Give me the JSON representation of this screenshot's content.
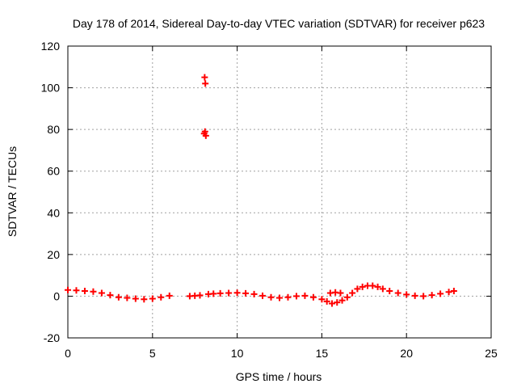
{
  "chart_data": {
    "type": "scatter",
    "title": "Day 178 of 2014, Sidereal Day-to-day VTEC variation (SDTVAR) for receiver p623",
    "xlabel": "GPS time / hours",
    "ylabel": "SDTVAR / TECUs",
    "xlim": [
      0,
      25
    ],
    "ylim": [
      -20,
      120
    ],
    "xticks": [
      0,
      5,
      10,
      15,
      20,
      25
    ],
    "xtick_labels": [
      "0",
      "5",
      "10",
      "15",
      "20",
      "25"
    ],
    "yticks": [
      -20,
      0,
      20,
      40,
      60,
      80,
      100,
      120
    ],
    "ytick_labels": [
      "-20",
      "0",
      "20",
      "40",
      "60",
      "80",
      "100",
      "120"
    ],
    "grid": true,
    "marker": "+",
    "color": "#ff0000",
    "series": [
      {
        "name": "SDTVAR",
        "x": [
          0,
          0.5,
          1.0,
          1.5,
          2.0,
          2.5,
          3.0,
          3.5,
          4.0,
          4.5,
          5.0,
          5.5,
          6.0,
          7.2,
          7.5,
          7.8,
          8.3,
          8.6,
          9.0,
          9.5,
          10.0,
          10.5,
          11.0,
          11.5,
          12.0,
          12.5,
          13.0,
          13.5,
          14.0,
          14.5,
          15.0,
          15.3,
          15.6,
          15.9,
          16.2,
          16.5,
          16.8,
          17.1,
          17.4,
          17.7,
          18.0,
          18.3,
          18.6,
          19.0,
          19.5,
          20.0,
          20.5,
          21.0,
          21.5,
          22.0,
          22.5,
          22.8,
          15.5,
          15.8,
          16.1,
          8.05,
          8.1,
          8.15,
          8.08,
          8.12
        ],
        "y": [
          3,
          2.8,
          2.5,
          2.2,
          1.5,
          0.5,
          -0.5,
          -0.8,
          -1.2,
          -1.5,
          -1.2,
          -0.5,
          0.2,
          0,
          0.2,
          0.4,
          1,
          1.2,
          1.4,
          1.5,
          1.6,
          1.4,
          1.0,
          0.2,
          -0.5,
          -0.8,
          -0.5,
          0,
          0.2,
          -0.5,
          -1.5,
          -2.5,
          -3.5,
          -3,
          -2,
          -0.5,
          1.5,
          3.5,
          4.5,
          5,
          5,
          4.5,
          3.5,
          2.5,
          1.5,
          0.8,
          0.2,
          0,
          0.5,
          1.2,
          2,
          2.5,
          1.5,
          1.8,
          1.5,
          78,
          79,
          77,
          105,
          102
        ]
      }
    ]
  }
}
